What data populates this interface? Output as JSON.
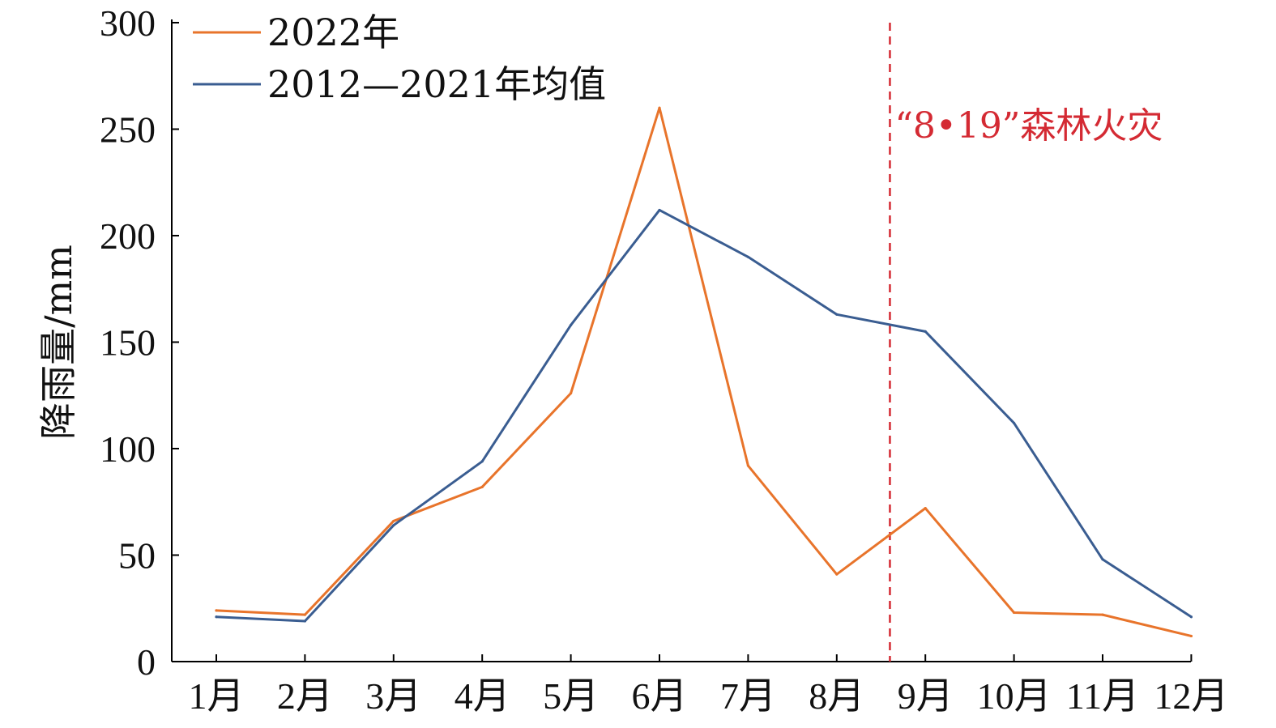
{
  "chart_data": {
    "type": "line",
    "categories": [
      "1月",
      "2月",
      "3月",
      "4月",
      "5月",
      "6月",
      "7月",
      "8月",
      "9月",
      "10月",
      "11月",
      "12月"
    ],
    "series": [
      {
        "name": "2022年",
        "color": "#e8742b",
        "values": [
          24,
          22,
          66,
          82,
          126,
          260,
          92,
          41,
          72,
          23,
          22,
          12
        ]
      },
      {
        "name": "2012—2021年均值",
        "color": "#3a5d91",
        "values": [
          21,
          19,
          64,
          94,
          158,
          212,
          190,
          163,
          155,
          112,
          48,
          21
        ]
      }
    ],
    "ylabel": "降雨量/mm",
    "ylim": [
      0,
      300
    ],
    "yticks": [
      0,
      50,
      100,
      150,
      200,
      250,
      300
    ],
    "grid": false,
    "legend_position": "top-left",
    "annotation": {
      "text": "“8•19”森林火灾",
      "color": "#d42a33",
      "x_between": [
        "8月",
        "9月"
      ],
      "x_position": 7.6,
      "style": "dashed"
    }
  }
}
